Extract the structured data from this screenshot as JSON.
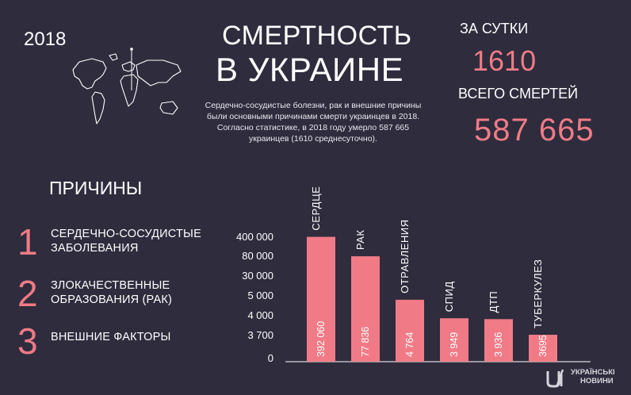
{
  "header": {
    "year": "2018",
    "title_line1": "СМЕРТНОСТЬ",
    "title_line2": "В УКРАИНЕ",
    "description": "Сердечно-сосудистые болезни, рак и внешние причины были основными причинами смерти украинцев в 2018. Согласно статистике, в 2018 году умерло 587 665 украинцев (1610 среднесуточно)."
  },
  "stats": {
    "per_day_label": "ЗА СУТКИ",
    "per_day_value": "1610",
    "total_label": "ВСЕГО СМЕРТЕЙ",
    "total_value": "587 665"
  },
  "causes": {
    "title": "ПРИЧИНЫ",
    "items": [
      {
        "num": "1",
        "line1": "СЕРДЕЧНО-СОСУДИСТЫЕ",
        "line2": "ЗАБОЛЕВАНИЯ"
      },
      {
        "num": "2",
        "line1": "ЗЛОКАЧЕСТВЕННЫЕ",
        "line2": "ОБРАЗОВАНИЯ (РАК)"
      },
      {
        "num": "3",
        "line1": "ВНЕШНИЕ ФАКТОРЫ",
        "line2": ""
      }
    ]
  },
  "colors": {
    "background": "#2e2c3d",
    "accent": "#f07b86",
    "text": "#ffffff"
  },
  "chart_data": {
    "type": "bar",
    "categories": [
      "СЕРДЦЕ",
      "РАК",
      "ОТРАВЛЕНИЯ",
      "СПИД",
      "ДТП",
      "ТУБЕРКУЛЕЗ"
    ],
    "values": [
      392060,
      77836,
      4764,
      3949,
      3936,
      3695
    ],
    "value_labels": [
      "392 060",
      "77 836",
      "4 764",
      "3 949",
      "3 936",
      "3695"
    ],
    "ytick_labels": [
      "400 000",
      "80 000",
      "30 000",
      "5 000",
      "4 000",
      "3 700",
      "0"
    ],
    "ytick_values": [
      400000,
      80000,
      30000,
      5000,
      4000,
      3700,
      0
    ],
    "scale": "non-linear (axis ticks unevenly spaced)"
  },
  "logo": {
    "line1": "УКРАЇНСЬКІ",
    "line2": "НОВИНИ"
  }
}
